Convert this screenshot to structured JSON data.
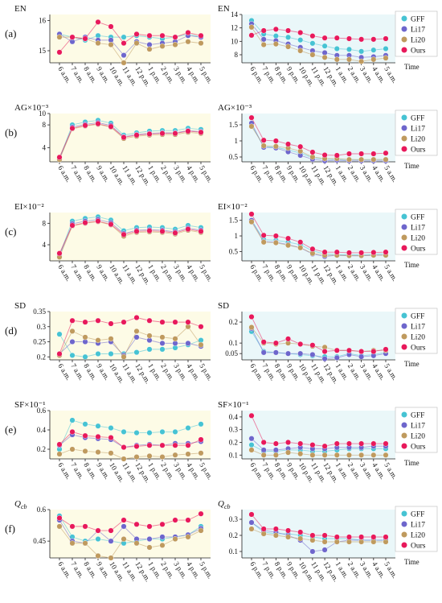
{
  "colors": {
    "day_bg": "#fdfbe6",
    "night_bg": "#eaf7f9",
    "GFF": "#46c3d3",
    "Li17": "#6e66cc",
    "Li20": "#bf9a5e",
    "Ours": "#e8195b"
  },
  "x_day": [
    "6 a.m.",
    "7 a.m.",
    "8 a.m.",
    "9 a.m.",
    "10 a.m.",
    "11 a.m.",
    "12 p.m.",
    "1 p.m.",
    "2 p.m.",
    "3 p.m.",
    "4 p.m.",
    "5 p.m."
  ],
  "x_night": [
    "6 p.m.",
    "7 p.m.",
    "8 p.m.",
    "9 p.m.",
    "10 p.m.",
    "11 p.m.",
    "12 p.m.",
    "1 a.m.",
    "2 a.m.",
    "3 a.m.",
    "4 a.m.",
    "5 a.m."
  ],
  "time_label": "Time",
  "legend": [
    "GFF",
    "Li17",
    "Li20",
    "Ours"
  ],
  "chart_data": [
    {
      "type": "line",
      "row_label": "(a)",
      "metric": "EN",
      "day": {
        "title": "EN",
        "ylim": [
          14.6,
          16.2
        ],
        "yticks": [
          15,
          16
        ],
        "series": [
          {
            "name": "GFF",
            "values": [
              15.55,
              15.45,
              15.35,
              15.5,
              15.45,
              15.45,
              15.5,
              15.45,
              15.4,
              15.45,
              15.55,
              15.45
            ]
          },
          {
            "name": "Li17",
            "values": [
              15.55,
              15.3,
              15.45,
              15.35,
              15.35,
              14.85,
              15.3,
              15.2,
              15.25,
              15.3,
              15.5,
              15.45
            ]
          },
          {
            "name": "Li20",
            "values": [
              15.45,
              15.45,
              15.4,
              15.25,
              15.2,
              14.6,
              15.25,
              15.05,
              15.15,
              15.2,
              15.3,
              15.25
            ]
          },
          {
            "name": "Ours",
            "values": [
              14.95,
              15.45,
              15.4,
              15.95,
              15.8,
              15.25,
              15.55,
              15.5,
              15.5,
              15.45,
              15.6,
              15.5
            ]
          }
        ]
      },
      "night": {
        "title": "EN",
        "ylim": [
          6.8,
          14
        ],
        "yticks": [
          8,
          10,
          12,
          14
        ],
        "series": [
          {
            "name": "GFF",
            "values": [
              13.1,
              11.1,
              10.8,
              10.6,
              10.2,
              9.7,
              9.3,
              8.9,
              8.8,
              8.5,
              8.7,
              8.9
            ]
          },
          {
            "name": "Li17",
            "values": [
              12.6,
              10.3,
              10.1,
              9.6,
              9.1,
              8.6,
              8.3,
              7.9,
              7.9,
              7.6,
              7.7,
              7.9
            ]
          },
          {
            "name": "Li20",
            "values": [
              12.1,
              9.5,
              9.6,
              9.2,
              8.6,
              8.0,
              7.6,
              7.3,
              7.3,
              7.0,
              7.3,
              7.5
            ]
          },
          {
            "name": "Ours",
            "values": [
              10.9,
              11.6,
              11.8,
              11.6,
              11.3,
              10.8,
              10.5,
              10.5,
              10.4,
              10.3,
              10.3,
              10.4
            ]
          }
        ]
      }
    },
    {
      "type": "line",
      "row_label": "(b)",
      "metric": "AG",
      "day": {
        "title": "AG×10⁻³",
        "ylim": [
          1.5,
          10
        ],
        "yticks": [
          4,
          8,
          10
        ],
        "series": [
          {
            "name": "GFF",
            "values": [
              2.1,
              8.0,
              8.5,
              8.8,
              8.3,
              6.2,
              6.6,
              6.9,
              7.0,
              7.0,
              7.4,
              7.2
            ]
          },
          {
            "name": "Li17",
            "values": [
              2.0,
              7.6,
              8.1,
              8.4,
              7.9,
              5.9,
              6.3,
              6.5,
              6.6,
              6.6,
              7.0,
              6.8
            ]
          },
          {
            "name": "Li20",
            "values": [
              1.9,
              7.3,
              7.8,
              8.1,
              7.6,
              5.6,
              6.0,
              6.2,
              6.3,
              6.3,
              6.7,
              6.5
            ]
          },
          {
            "name": "Ours",
            "values": [
              2.3,
              7.4,
              7.9,
              8.2,
              7.7,
              5.8,
              6.2,
              6.4,
              6.5,
              6.5,
              6.9,
              6.7
            ]
          }
        ]
      },
      "night": {
        "title": "AG×10⁻³",
        "ylim": [
          0.35,
          1.85
        ],
        "yticks": [
          0.5,
          1,
          1.5
        ],
        "series": [
          {
            "name": "GFF",
            "values": [
              1.5,
              0.82,
              0.8,
              0.72,
              0.62,
              0.48,
              0.43,
              0.42,
              0.42,
              0.41,
              0.42,
              0.42
            ]
          },
          {
            "name": "Li17",
            "values": [
              1.55,
              0.8,
              0.78,
              0.66,
              0.55,
              0.43,
              0.38,
              0.4,
              0.38,
              0.38,
              0.38,
              0.38
            ]
          },
          {
            "name": "Li20",
            "values": [
              1.45,
              0.85,
              0.83,
              0.78,
              0.68,
              0.5,
              0.45,
              0.45,
              0.42,
              0.42,
              0.42,
              0.42
            ]
          },
          {
            "name": "Ours",
            "values": [
              1.72,
              1.02,
              1.0,
              0.9,
              0.82,
              0.65,
              0.56,
              0.55,
              0.6,
              0.6,
              0.6,
              0.62
            ]
          }
        ]
      }
    },
    {
      "type": "line",
      "row_label": "(c)",
      "metric": "EI",
      "day": {
        "title": "EI×10⁻²",
        "ylim": [
          1,
          10
        ],
        "yticks": [
          4,
          8
        ],
        "series": [
          {
            "name": "GFF",
            "values": [
              2.1,
              8.4,
              8.9,
              9.2,
              8.6,
              6.6,
              7.2,
              7.3,
              7.2,
              6.9,
              7.6,
              7.2
            ]
          },
          {
            "name": "Li17",
            "values": [
              1.9,
              7.9,
              8.4,
              8.7,
              8.1,
              6.1,
              6.7,
              6.8,
              6.7,
              6.4,
              7.1,
              6.7
            ]
          },
          {
            "name": "Li20",
            "values": [
              1.7,
              7.5,
              8.0,
              8.3,
              7.7,
              5.6,
              6.3,
              6.4,
              6.3,
              6.0,
              6.7,
              6.3
            ]
          },
          {
            "name": "Ours",
            "values": [
              2.4,
              7.6,
              8.1,
              8.4,
              7.8,
              5.9,
              6.5,
              6.6,
              6.5,
              6.2,
              6.9,
              6.5
            ]
          }
        ]
      },
      "night": {
        "title": "EI×10⁻²",
        "ylim": [
          0.2,
          1.75
        ],
        "yticks": [
          0.5,
          1,
          1.5
        ],
        "series": [
          {
            "name": "GFF",
            "values": [
              1.5,
              0.88,
              0.86,
              0.8,
              0.72,
              0.52,
              0.42,
              0.4,
              0.4,
              0.39,
              0.41,
              0.42
            ]
          },
          {
            "name": "Li17",
            "values": [
              1.5,
              0.82,
              0.8,
              0.72,
              0.62,
              0.42,
              0.34,
              0.38,
              0.36,
              0.36,
              0.38,
              0.38
            ]
          },
          {
            "name": "Li20",
            "values": [
              1.45,
              0.8,
              0.78,
              0.7,
              0.62,
              0.44,
              0.38,
              0.38,
              0.37,
              0.37,
              0.38,
              0.38
            ]
          },
          {
            "name": "Ours",
            "values": [
              1.7,
              1.02,
              1.0,
              0.92,
              0.8,
              0.58,
              0.48,
              0.48,
              0.46,
              0.46,
              0.47,
              0.48
            ]
          }
        ]
      }
    },
    {
      "type": "line",
      "row_label": "(d)",
      "metric": "SD",
      "day": {
        "title": "SD",
        "ylim": [
          0.19,
          0.35
        ],
        "yticks": [
          0.2,
          0.25,
          0.3,
          0.35
        ],
        "series": [
          {
            "name": "GFF",
            "values": [
              0.275,
              0.205,
              0.2,
              0.21,
              0.21,
              0.21,
              0.215,
              0.225,
              0.225,
              0.23,
              0.24,
              0.255
            ]
          },
          {
            "name": "Li17",
            "values": [
              0.21,
              0.25,
              0.25,
              0.245,
              0.25,
              0.205,
              0.265,
              0.255,
              0.245,
              0.245,
              0.245,
              0.235
            ]
          },
          {
            "name": "Li20",
            "values": [
              0.205,
              0.285,
              0.265,
              0.255,
              0.26,
              0.2,
              0.285,
              0.27,
              0.265,
              0.26,
              0.3,
              0.24
            ]
          },
          {
            "name": "Ours",
            "values": [
              0.21,
              0.32,
              0.315,
              0.32,
              0.31,
              0.315,
              0.33,
              0.32,
              0.315,
              0.315,
              0.315,
              0.3
            ]
          }
        ]
      },
      "night": {
        "title": "SD",
        "ylim": [
          0.02,
          0.25
        ],
        "yticks": [
          0.05,
          0.1,
          0.2
        ],
        "series": [
          {
            "name": "GFF",
            "values": [
              0.155,
              0.06,
              0.055,
              0.05,
              0.045,
              0.04,
              0.035,
              0.035,
              0.05,
              0.04,
              0.045,
              0.055
            ]
          },
          {
            "name": "Li17",
            "values": [
              0.17,
              0.055,
              0.055,
              0.05,
              0.05,
              0.045,
              0.025,
              0.03,
              0.045,
              0.035,
              0.04,
              0.05
            ]
          },
          {
            "name": "Li20",
            "values": [
              0.175,
              0.1,
              0.095,
              0.1,
              0.095,
              0.085,
              0.08,
              0.065,
              0.065,
              0.06,
              0.065,
              0.065
            ]
          },
          {
            "name": "Ours",
            "values": [
              0.225,
              0.105,
              0.1,
              0.12,
              0.095,
              0.09,
              0.06,
              0.065,
              0.065,
              0.06,
              0.06,
              0.07
            ]
          }
        ]
      }
    },
    {
      "type": "line",
      "row_label": "(e)",
      "metric": "SF",
      "day": {
        "title": "SF×10⁻¹",
        "ylim": [
          0.1,
          0.6
        ],
        "yticks": [
          0.2,
          0.4,
          0.6
        ],
        "series": [
          {
            "name": "GFF",
            "values": [
              0.2,
              0.5,
              0.46,
              0.44,
              0.42,
              0.38,
              0.37,
              0.37,
              0.38,
              0.38,
              0.42,
              0.46
            ]
          },
          {
            "name": "Li17",
            "values": [
              0.24,
              0.35,
              0.32,
              0.31,
              0.3,
              0.22,
              0.24,
              0.25,
              0.24,
              0.26,
              0.26,
              0.28
            ]
          },
          {
            "name": "Li20",
            "values": [
              0.15,
              0.2,
              0.18,
              0.17,
              0.16,
              0.1,
              0.12,
              0.13,
              0.12,
              0.14,
              0.15,
              0.16
            ]
          },
          {
            "name": "Ours",
            "values": [
              0.25,
              0.38,
              0.34,
              0.33,
              0.32,
              0.22,
              0.23,
              0.24,
              0.24,
              0.24,
              0.24,
              0.3
            ]
          }
        ]
      },
      "night": {
        "title": "SF×10⁻¹",
        "ylim": [
          0.07,
          0.45
        ],
        "yticks": [
          0.1,
          0.2,
          0.3,
          0.4
        ],
        "series": [
          {
            "name": "GFF",
            "values": [
              0.18,
              0.13,
              0.13,
              0.14,
              0.14,
              0.13,
              0.13,
              0.14,
              0.15,
              0.15,
              0.15,
              0.15
            ]
          },
          {
            "name": "Li17",
            "values": [
              0.23,
              0.14,
              0.14,
              0.15,
              0.16,
              0.15,
              0.15,
              0.16,
              0.16,
              0.16,
              0.17,
              0.17
            ]
          },
          {
            "name": "Li20",
            "values": [
              0.14,
              0.1,
              0.1,
              0.12,
              0.11,
              0.1,
              0.1,
              0.1,
              0.1,
              0.1,
              0.1,
              0.1
            ]
          },
          {
            "name": "Ours",
            "values": [
              0.41,
              0.2,
              0.19,
              0.2,
              0.19,
              0.18,
              0.17,
              0.19,
              0.19,
              0.19,
              0.19,
              0.19
            ]
          }
        ]
      }
    },
    {
      "type": "line",
      "row_label": "(f)",
      "metric": "Qcb",
      "day": {
        "title": "Q_cb",
        "ylim": [
          0.37,
          0.6
        ],
        "yticks": [
          0.45,
          0.6
        ],
        "series": [
          {
            "name": "GFF",
            "values": [
              0.57,
              0.47,
              0.45,
              0.46,
              0.45,
              0.44,
              0.45,
              0.46,
              0.46,
              0.47,
              0.48,
              0.52
            ]
          },
          {
            "name": "Li17",
            "values": [
              0.55,
              0.45,
              0.44,
              0.5,
              0.45,
              0.52,
              0.46,
              0.46,
              0.47,
              0.47,
              0.48,
              0.51
            ]
          },
          {
            "name": "Li20",
            "values": [
              0.52,
              0.44,
              0.44,
              0.38,
              0.37,
              0.46,
              0.44,
              0.42,
              0.43,
              0.46,
              0.47,
              0.5
            ]
          },
          {
            "name": "Ours",
            "values": [
              0.56,
              0.52,
              0.52,
              0.5,
              0.5,
              0.55,
              0.53,
              0.52,
              0.53,
              0.55,
              0.55,
              0.58
            ]
          }
        ]
      },
      "night": {
        "title": "Q_cb",
        "ylim": [
          0.06,
          0.36
        ],
        "yticks": [
          0.1,
          0.2,
          0.3
        ],
        "series": [
          {
            "name": "GFF",
            "values": [
              0.28,
              0.22,
              0.21,
              0.21,
              0.2,
              0.19,
              0.18,
              0.18,
              0.18,
              0.17,
              0.17,
              0.17
            ]
          },
          {
            "name": "Li17",
            "values": [
              0.28,
              0.23,
              0.22,
              0.2,
              0.17,
              0.1,
              0.11,
              0.16,
              0.17,
              0.17,
              0.17,
              0.17
            ]
          },
          {
            "name": "Li20",
            "values": [
              0.24,
              0.21,
              0.2,
              0.19,
              0.18,
              0.17,
              0.16,
              0.16,
              0.16,
              0.16,
              0.16,
              0.16
            ]
          },
          {
            "name": "Ours",
            "values": [
              0.33,
              0.24,
              0.24,
              0.23,
              0.22,
              0.2,
              0.2,
              0.19,
              0.19,
              0.19,
              0.19,
              0.19
            ]
          }
        ]
      }
    }
  ]
}
